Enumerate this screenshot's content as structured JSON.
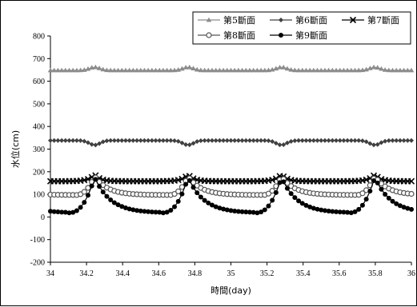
{
  "chart_data": {
    "type": "line",
    "title": "",
    "xlabel": "時間(day)",
    "ylabel": "水位(cm)",
    "xlim": [
      34,
      36
    ],
    "ylim": [
      -200,
      800
    ],
    "xticks": [
      "34",
      "34.2",
      "34.4",
      "34.6",
      "34.8",
      "35",
      "35.2",
      "35.4",
      "35.6",
      "35.8",
      "36"
    ],
    "yticks": [
      "-200",
      "-100",
      "0",
      "100",
      "200",
      "300",
      "400",
      "500",
      "600",
      "700",
      "800"
    ],
    "grid": false,
    "legend_position": "top-right",
    "period_days": 0.5175,
    "peak_day": 34.245,
    "series": [
      {
        "name": "第5斷面",
        "marker": "triangle",
        "color": "#8c8c8c",
        "base": 648,
        "peak": 662,
        "shape": "bump"
      },
      {
        "name": "第6斷面",
        "marker": "diamond",
        "color": "#404040",
        "base": 338,
        "peak": 318,
        "shape": "dip"
      },
      {
        "name": "第7斷面",
        "marker": "x",
        "color": "#000000",
        "base": 158,
        "peak": 188,
        "shape": "spike"
      },
      {
        "name": "第8斷面",
        "marker": "circle-open",
        "color": "#555555",
        "base": 97,
        "peak": 180,
        "shape": "decay"
      },
      {
        "name": "第9斷面",
        "marker": "circle-filled",
        "color": "#000000",
        "base": 18,
        "peak": 175,
        "shape": "deep"
      }
    ]
  }
}
